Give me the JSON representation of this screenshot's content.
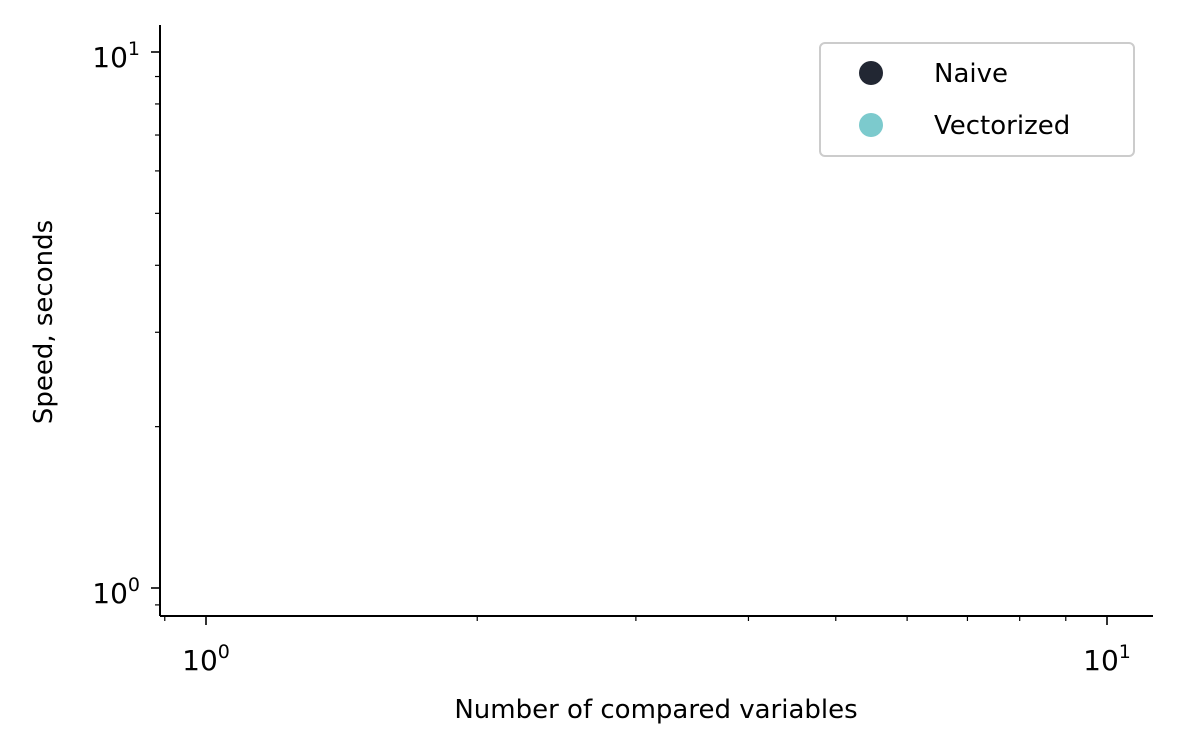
{
  "chart_data": {
    "type": "scatter",
    "title": "",
    "xlabel": "Number of compared variables",
    "ylabel": "Speed, seconds",
    "xscale": "log",
    "yscale": "log",
    "xlim": [
      0.9,
      12
    ],
    "ylim": [
      0.92,
      11.5
    ],
    "x_major_ticks": [
      {
        "value": 1,
        "base": "10",
        "exp": "0"
      },
      {
        "value": 10,
        "base": "10",
        "exp": "1"
      }
    ],
    "y_major_ticks": [
      {
        "value": 1,
        "base": "10",
        "exp": "0"
      },
      {
        "value": 10,
        "base": "10",
        "exp": "1"
      }
    ],
    "x_minor_ticks": [
      0.9,
      2,
      3,
      4,
      5,
      6,
      7,
      8,
      9
    ],
    "y_minor_ticks": [
      0.93,
      2,
      3,
      4,
      5,
      6,
      7,
      8,
      9
    ],
    "grid": false,
    "legend_position": "top-right",
    "series": [
      {
        "name": "Naive",
        "color": "#222733",
        "points": []
      },
      {
        "name": "Vectorized",
        "color": "#7ccacd",
        "points": []
      }
    ]
  }
}
